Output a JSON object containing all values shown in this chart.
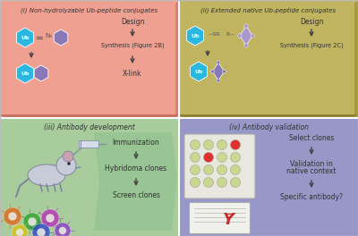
{
  "panel_titles": [
    "(i) Non-hydrolyzable Ub-peptide conjugates",
    "(ii) Extended native Ub-peptide conjugates",
    "(iii) Antibody development",
    "(iv) Antibody validation"
  ],
  "panel1_bg": "#f0a090",
  "panel1_side": "#d88070",
  "panel1_bottom": "#c87060",
  "panel2_bg": "#c0b460",
  "panel2_side": "#a89840",
  "panel2_bottom": "#908030",
  "panel3_bg": "#a8cc9c",
  "panel3_chevron": "#88b888",
  "panel4_bg": "#9898c8",
  "ub_color": "#2ab8e0",
  "peptide_color": "#8878b8",
  "peptide_light": "#a898cc",
  "text_dark": "#303030",
  "text_mid": "#505050",
  "arrow_color": "#404040",
  "well_green": "#c8d890",
  "well_red": "#e03030",
  "cell_colors": [
    "#e06010",
    "#28a028",
    "#b828b8",
    "#d8c010",
    "#2840c8"
  ],
  "mouse_body": "#c8ccd8",
  "mouse_outline": "#7878a0"
}
